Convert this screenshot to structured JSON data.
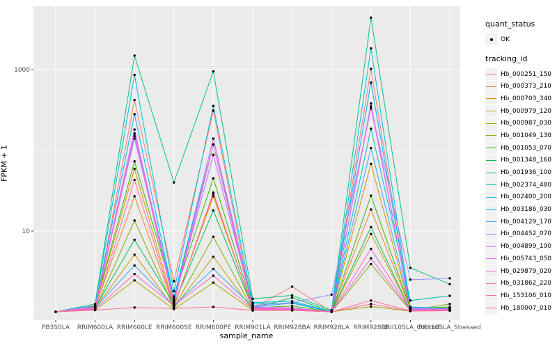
{
  "figure": {
    "y_axis": {
      "label": "FPKM + 1"
    },
    "x_axis": {
      "label": "sample_name"
    },
    "legend": {
      "quant_status": {
        "title": "quant_status",
        "entries": [
          {
            "label": "OK",
            "marker": "point-icon"
          }
        ]
      },
      "tracking_id": {
        "title": "tracking_id"
      }
    }
  },
  "colors": {
    "panel_bg": "#EBEBEB",
    "grid": "#FFFFFF",
    "legend_key_bg": "#F2F2F2",
    "tick_text": "#4D4D4D",
    "tick_mark": "#333333",
    "point": "#000000"
  },
  "chart_data": {
    "type": "line",
    "title": "",
    "xlabel": "sample_name",
    "ylabel": "FPKM + 1",
    "y_scale": "log10",
    "ylim": [
      1,
      6000
    ],
    "grid": true,
    "legend_position": "right",
    "y_ticks": [
      {
        "label": "10",
        "value": 10
      },
      {
        "label": "1000",
        "value": 1000
      }
    ],
    "y_minor": [
      1,
      100
    ],
    "x": [
      "PB350LA",
      "RRIM600LA",
      "RRIM600LE",
      "RRIM600SE",
      "RRIM600PE",
      "RRIM901LA",
      "RRIM928BA",
      "RRIM928LA",
      "RRIM928LE",
      "RRII105LA_Control",
      "RRII105LA_Stressed"
    ],
    "series": [
      {
        "name": "Hb_000251_150",
        "color": "#F8766D",
        "values": [
          1,
          1.08,
          420,
          2.4,
          310,
          1.1,
          2.05,
          1.0,
          1020,
          1.05,
          1.05
        ]
      },
      {
        "name": "Hb_000373_210",
        "color": "#EA8331",
        "values": [
          1,
          1.12,
          27,
          1.15,
          29,
          1.08,
          1.1,
          1.0,
          18.5,
          1.1,
          1.12
        ]
      },
      {
        "name": "Hb_000703_340",
        "color": "#D89000",
        "values": [
          1,
          1.15,
          59,
          1.2,
          27,
          1.1,
          1.08,
          1.0,
          68,
          1.08,
          1.12
        ]
      },
      {
        "name": "Hb_000979_120",
        "color": "#C09B00",
        "values": [
          1,
          1.1,
          5.1,
          1.12,
          4.8,
          1.05,
          1.05,
          1.0,
          9.2,
          1.06,
          1.1
        ]
      },
      {
        "name": "Hb_000987_030",
        "color": "#A3A500",
        "values": [
          1,
          1.05,
          2.45,
          1.08,
          2.3,
          1.04,
          1.04,
          1.0,
          1.16,
          1.02,
          1.05
        ]
      },
      {
        "name": "Hb_001049_130",
        "color": "#7CAE00",
        "values": [
          1,
          1.08,
          13.5,
          1.12,
          8.5,
          1.06,
          1.05,
          1.0,
          3.9,
          1.04,
          1.25
        ]
      },
      {
        "name": "Hb_001053_070",
        "color": "#39B600",
        "values": [
          1,
          1.18,
          73,
          1.55,
          45,
          1.12,
          1.18,
          1.0,
          27.5,
          1.1,
          1.15
        ]
      },
      {
        "name": "Hb_001348_160",
        "color": "#00BB4E",
        "values": [
          1,
          1.12,
          7.8,
          1.25,
          18,
          1.1,
          1.5,
          1.0,
          11.2,
          1.05,
          1.1
        ]
      },
      {
        "name": "Hb_001936_100",
        "color": "#00C087",
        "values": [
          1,
          1.25,
          1490,
          40,
          950,
          1.45,
          1.6,
          1.05,
          4400,
          3.5,
          2.2
        ]
      },
      {
        "name": "Hb_002374_480",
        "color": "#00C0B2",
        "values": [
          1,
          1.15,
          161,
          1.5,
          118,
          1.25,
          1.28,
          1.0,
          185,
          1.38,
          1.58
        ]
      },
      {
        "name": "Hb_002400_200",
        "color": "#00BCD8",
        "values": [
          1,
          1.2,
          860,
          1.8,
          355,
          1.3,
          1.35,
          1.0,
          1830,
          1.15,
          1.1
        ]
      },
      {
        "name": "Hb_003186_030",
        "color": "#00B0F6",
        "values": [
          1,
          1.15,
          280,
          1.5,
          140,
          1.2,
          1.3,
          1.0,
          690,
          1.12,
          1.1
        ]
      },
      {
        "name": "Hb_004129_170",
        "color": "#35A2FF",
        "values": [
          1,
          1.12,
          3.75,
          1.2,
          3.4,
          1.15,
          1.28,
          1.0,
          107,
          1.12,
          1.1
        ]
      },
      {
        "name": "Hb_004452_070",
        "color": "#9590FF",
        "values": [
          1,
          1.2,
          140,
          1.4,
          88,
          1.2,
          1.3,
          1.63,
          330,
          2.5,
          2.6
        ]
      },
      {
        "name": "Hb_004899_190",
        "color": "#C77CFF",
        "values": [
          1,
          1.15,
          161,
          1.35,
          88,
          1.15,
          1.12,
          1.0,
          380,
          1.1,
          1.08
        ]
      },
      {
        "name": "Hb_005743_050",
        "color": "#E76BF3",
        "values": [
          1,
          1.12,
          181,
          1.3,
          140,
          1.12,
          1.1,
          1.0,
          350,
          1.08,
          1.06
        ]
      },
      {
        "name": "Hb_029879_020",
        "color": "#FA62DB",
        "values": [
          1,
          1.1,
          150,
          1.25,
          118,
          1.1,
          1.08,
          1.0,
          6.0,
          1.06,
          1.06
        ]
      },
      {
        "name": "Hb_031862_220",
        "color": "#FF62BC",
        "values": [
          1,
          1.08,
          2.94,
          1.2,
          2.8,
          1.08,
          1.06,
          1.0,
          4.6,
          1.05,
          1.05
        ]
      },
      {
        "name": "Hb_153106_010",
        "color": "#FF6A98",
        "values": [
          1,
          1.06,
          43,
          1.15,
          30,
          1.05,
          1.05,
          1.0,
          1.38,
          1.03,
          1.04
        ]
      },
      {
        "name": "Hb_180007_010",
        "color": "#FF6C91",
        "values": [
          1,
          1.05,
          1.13,
          1.1,
          1.15,
          1.04,
          1.04,
          1.0,
          1.25,
          1.02,
          1.03
        ]
      }
    ]
  }
}
